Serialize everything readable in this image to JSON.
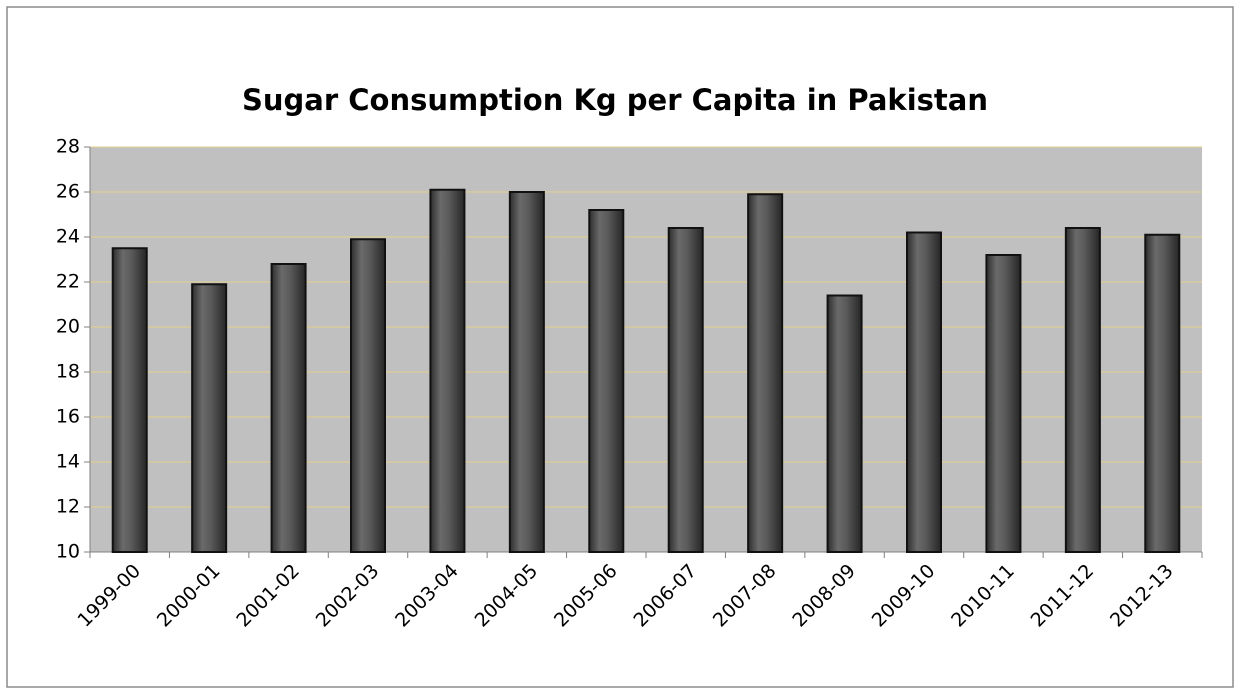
{
  "chart_data": {
    "type": "bar",
    "title": "Sugar Consumption Kg per Capita in Pakistan",
    "categories": [
      "1999-00",
      "2000-01",
      "2001-02",
      "2002-03",
      "2003-04",
      "2004-05",
      "2005-06",
      "2006-07",
      "2007-08",
      "2008-09",
      "2009-10",
      "2010-11",
      "2011-12",
      "2012-13"
    ],
    "values": [
      23.5,
      21.9,
      22.8,
      23.9,
      26.1,
      26.0,
      25.2,
      24.4,
      25.9,
      21.4,
      24.2,
      23.2,
      24.4,
      24.1
    ],
    "color": "#555555",
    "ylim": [
      10,
      28
    ],
    "yticks": [
      10,
      12,
      14,
      16,
      18,
      20,
      22,
      24,
      26,
      28
    ],
    "grid": true
  }
}
